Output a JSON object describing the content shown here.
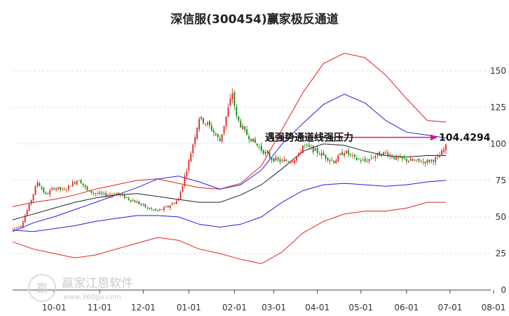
{
  "chart_data": {
    "type": "candlestick",
    "title": "深信服(300454)赢家极反通道",
    "xlabel": "",
    "ylabel": "",
    "ylim": [
      0,
      160
    ],
    "yticks": [
      0,
      25,
      50,
      75,
      100,
      125,
      150
    ],
    "grid": true,
    "x_tick_labels": [
      "10-01",
      "11-01",
      "12-01",
      "01-01",
      "02-01",
      "03-01",
      "04-01",
      "05-01",
      "06-01",
      "07-01",
      "08-01"
    ],
    "annotation": {
      "text": "遇强势通道线强压力",
      "value_label": "104.4294",
      "value": 104.4294,
      "arrow_color": "#e0157d"
    },
    "colors": {
      "up": "#e02020",
      "down": "#0a8a0a",
      "outer_band": "#e02020",
      "inner_band": "#2020e0",
      "mid_line": "#222222"
    },
    "series": [
      {
        "role": "outer-upper",
        "x": [
          0,
          10,
          20,
          30,
          40,
          50,
          60,
          70,
          80,
          90,
          100,
          110,
          120,
          130,
          140,
          150,
          160,
          170,
          180,
          190,
          200,
          209
        ],
        "values": [
          57,
          60,
          62,
          65,
          69,
          72,
          75,
          76,
          73,
          70,
          69,
          73,
          85,
          110,
          135,
          155,
          162,
          159,
          147,
          131,
          116,
          115
        ]
      },
      {
        "role": "inner-upper",
        "x": [
          0,
          10,
          20,
          30,
          40,
          50,
          60,
          70,
          80,
          90,
          100,
          110,
          120,
          130,
          140,
          150,
          160,
          170,
          180,
          190,
          200,
          209
        ],
        "values": [
          40,
          46,
          50,
          55,
          60,
          65,
          70,
          76,
          78,
          74,
          69,
          72,
          82,
          100,
          114,
          127,
          134,
          128,
          116,
          108,
          106,
          104
        ]
      },
      {
        "role": "middle",
        "x": [
          0,
          10,
          20,
          30,
          40,
          50,
          60,
          70,
          80,
          90,
          100,
          110,
          120,
          130,
          140,
          150,
          160,
          170,
          180,
          190,
          200,
          209
        ],
        "values": [
          48,
          52,
          56,
          60,
          63,
          65,
          66,
          64,
          62,
          60,
          60,
          65,
          72,
          83,
          95,
          100,
          99,
          95,
          92,
          91,
          92,
          92
        ]
      },
      {
        "role": "inner-lower",
        "x": [
          0,
          10,
          20,
          30,
          40,
          50,
          60,
          70,
          80,
          90,
          100,
          110,
          120,
          130,
          140,
          150,
          160,
          170,
          180,
          190,
          200,
          209
        ],
        "values": [
          41,
          40,
          42,
          44,
          47,
          49,
          51,
          51,
          50,
          45,
          43,
          45,
          50,
          60,
          68,
          72,
          73,
          72,
          71,
          72,
          74,
          75
        ]
      },
      {
        "role": "outer-lower",
        "x": [
          0,
          10,
          20,
          30,
          40,
          50,
          60,
          70,
          80,
          90,
          100,
          110,
          120,
          130,
          140,
          150,
          160,
          170,
          180,
          190,
          200,
          209
        ],
        "values": [
          33,
          28,
          25,
          22,
          24,
          28,
          32,
          36,
          34,
          28,
          25,
          21,
          18,
          26,
          39,
          47,
          52,
          54,
          54,
          56,
          60,
          60
        ]
      }
    ],
    "price_path": {
      "x": [
        0,
        4,
        8,
        12,
        16,
        20,
        25,
        28,
        32,
        36,
        40,
        45,
        50,
        55,
        60,
        65,
        70,
        75,
        80,
        85,
        90,
        95,
        100,
        106,
        108,
        112,
        116,
        120,
        125,
        130,
        135,
        138,
        140,
        145,
        150,
        155,
        160,
        165,
        170,
        175,
        180,
        185,
        190,
        195,
        200,
        205,
        209
      ],
      "values": [
        42,
        44,
        58,
        74,
        65,
        70,
        68,
        72,
        76,
        68,
        66,
        65,
        66,
        63,
        60,
        56,
        54,
        57,
        62,
        88,
        118,
        112,
        102,
        135,
        118,
        108,
        102,
        96,
        90,
        88,
        89,
        92,
        99,
        96,
        92,
        88,
        95,
        90,
        88,
        92,
        94,
        90,
        89,
        88,
        88,
        90,
        98
      ]
    }
  }
}
